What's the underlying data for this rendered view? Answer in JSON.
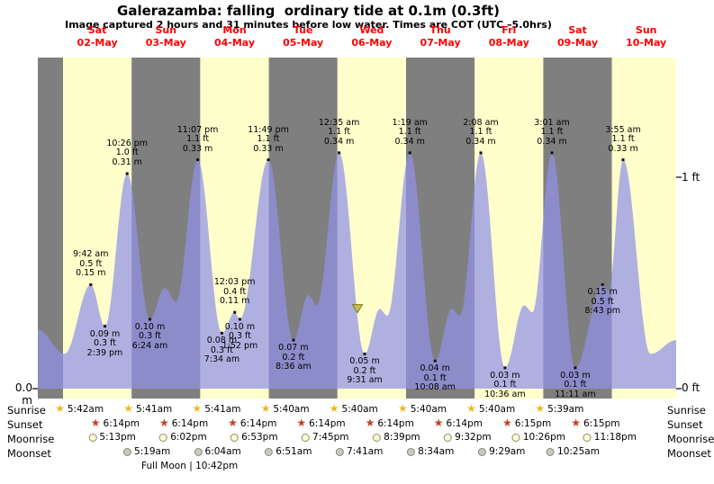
{
  "title": "Galerazamba: falling  ordinary tide at 0.1m (0.3ft)",
  "subtitle": "Image captured 2 hours and 31 minutes before low water. Times are COT (UTC –5.0hrs)",
  "axes": {
    "left_bottom": "0.0 m",
    "right_top": "1 ft",
    "right_bottom": "0 ft"
  },
  "colors": {
    "band_yellow": "#ffffcc",
    "band_gray": "#7f7f7f",
    "tide_fill": "#9191e8",
    "tide_opacity": 0.72,
    "day_label_red": "#ff0000",
    "marker_fill": "#c9c23f",
    "marker_stroke": "#7a762a",
    "sunrise_star": "#edb91e",
    "sunset_star": "#cf3b21",
    "moonrise_circle": "#ffffd6",
    "moonset_circle": "#c8c8c8"
  },
  "chart_data": {
    "type": "area",
    "title": "Galerazamba: falling  ordinary tide at 0.1m (0.3ft)",
    "ylabel_left": "0.0 m",
    "yticks_right": [
      "1 ft",
      "0 ft"
    ],
    "ylim_m": [
      0,
      0.48
    ],
    "x_span_days": 9.3,
    "days": [
      {
        "name": "Sat",
        "date": "02-May"
      },
      {
        "name": "Sun",
        "date": "03-May"
      },
      {
        "name": "Mon",
        "date": "04-May"
      },
      {
        "name": "Tue",
        "date": "05-May"
      },
      {
        "name": "Wed",
        "date": "06-May"
      },
      {
        "name": "Thu",
        "date": "07-May"
      },
      {
        "name": "Fri",
        "date": "08-May"
      },
      {
        "name": "Sat",
        "date": "09-May"
      },
      {
        "name": "Sun",
        "date": "10-May"
      }
    ],
    "tide_points": [
      {
        "kind": "high",
        "day": "02-May",
        "time": "9:42 am",
        "ft": "0.5 ft",
        "m": "0.15 m",
        "t": 9.7,
        "h": 0.15,
        "label_pos": "above"
      },
      {
        "kind": "low",
        "day": "02-May",
        "time": "2:39 pm",
        "ft": "0.3 ft",
        "m": "0.09 m",
        "t": 14.65,
        "h": 0.09,
        "label_pos": "below"
      },
      {
        "kind": "high",
        "day": "02-May",
        "time": "10:26 pm",
        "ft": "1.0 ft",
        "m": "0.31 m",
        "t": 22.43,
        "h": 0.31,
        "label_pos": "above"
      },
      {
        "kind": "low",
        "day": "03-May",
        "time": "6:24 am",
        "ft": "0.3 ft",
        "m": "0.10 m",
        "t": 30.4,
        "h": 0.1,
        "label_pos": "below"
      },
      {
        "kind": "high",
        "day": "03-May",
        "time": "11:07 pm",
        "ft": "1.1 ft",
        "m": "0.33 m",
        "t": 47.12,
        "h": 0.33,
        "label_pos": "above"
      },
      {
        "kind": "low",
        "day": "04-May",
        "time": "7:34 am",
        "ft": "0.3 ft",
        "m": "0.08 m",
        "t": 55.57,
        "h": 0.08,
        "label_pos": "below"
      },
      {
        "kind": "high",
        "day": "04-May",
        "time": "12:03 pm",
        "ft": "0.4 ft",
        "m": "0.11 m",
        "t": 60.05,
        "h": 0.11,
        "label_pos": "above"
      },
      {
        "kind": "low",
        "day": "04-May",
        "time": "1:52 pm",
        "ft": "0.3 ft",
        "m": "0.10 m",
        "t": 61.87,
        "h": 0.1,
        "label_pos": "below"
      },
      {
        "kind": "high",
        "day": "04-May",
        "time": "11:49 pm",
        "ft": "1.1 ft",
        "m": "0.33 m",
        "t": 71.82,
        "h": 0.33,
        "label_pos": "above"
      },
      {
        "kind": "low",
        "day": "05-May",
        "time": "8:36 am",
        "ft": "0.2 ft",
        "m": "0.07 m",
        "t": 80.6,
        "h": 0.07,
        "label_pos": "below"
      },
      {
        "kind": "high",
        "day": "06-May",
        "time": "12:35 am",
        "ft": "1.1 ft",
        "m": "0.34 m",
        "t": 96.58,
        "h": 0.34,
        "label_pos": "above"
      },
      {
        "kind": "low",
        "day": "06-May",
        "time": "9:31 am",
        "ft": "0.2 ft",
        "m": "0.05 m",
        "t": 105.52,
        "h": 0.05,
        "label_pos": "below"
      },
      {
        "kind": "high",
        "day": "07-May",
        "time": "1:19 am",
        "ft": "1.1 ft",
        "m": "0.34 m",
        "t": 121.32,
        "h": 0.34,
        "label_pos": "above"
      },
      {
        "kind": "low",
        "day": "07-May",
        "time": "10:08 am",
        "ft": "0.1 ft",
        "m": "0.04 m",
        "t": 130.13,
        "h": 0.04,
        "label_pos": "below"
      },
      {
        "kind": "high",
        "day": "08-May",
        "time": "2:08 am",
        "ft": "1.1 ft",
        "m": "0.34 m",
        "t": 146.13,
        "h": 0.34,
        "label_pos": "above"
      },
      {
        "kind": "low",
        "day": "08-May",
        "time": "10:36 am",
        "ft": "0.1 ft",
        "m": "0.03 m",
        "t": 154.6,
        "h": 0.03,
        "label_pos": "below"
      },
      {
        "kind": "high",
        "day": "09-May",
        "time": "3:01 am",
        "ft": "1.1 ft",
        "m": "0.34 m",
        "t": 171.02,
        "h": 0.34,
        "label_pos": "above"
      },
      {
        "kind": "low",
        "day": "09-May",
        "time": "11:11 am",
        "ft": "0.1 ft",
        "m": "0.03 m",
        "t": 179.18,
        "h": 0.03,
        "label_pos": "below"
      },
      {
        "kind": "point",
        "day": "09-May",
        "time": "8:43 pm",
        "ft": "0.5 ft",
        "m": "0.15 m",
        "t": 188.72,
        "h": 0.15,
        "label_pos": "below"
      },
      {
        "kind": "high",
        "day": "10-May",
        "time": "3:55 am",
        "ft": "1.1 ft",
        "m": "0.33 m",
        "t": 195.92,
        "h": 0.33,
        "label_pos": "above"
      }
    ],
    "curve_shape": [
      [
        -8.8,
        0.085
      ],
      [
        0.5,
        0.05
      ],
      [
        35.5,
        0.145
      ],
      [
        39.5,
        0.125
      ],
      [
        85.8,
        0.135
      ],
      [
        88.8,
        0.12
      ],
      [
        110.8,
        0.115
      ],
      [
        113.4,
        0.105
      ],
      [
        136.0,
        0.115
      ],
      [
        138.8,
        0.105
      ],
      [
        161.3,
        0.12
      ],
      [
        164.2,
        0.11
      ],
      [
        190.8,
        0.14
      ],
      [
        205.5,
        0.05
      ],
      [
        214.5,
        0.07
      ]
    ],
    "current_time_marker": {
      "t": 103.0,
      "h": 0.103
    }
  },
  "almanac": {
    "rows": [
      {
        "id": "sunrise",
        "label": "Sunrise",
        "icon": "star",
        "entries": [
          {
            "day": 0,
            "time": "5:42am"
          },
          {
            "day": 1,
            "time": "5:41am"
          },
          {
            "day": 2,
            "time": "5:41am"
          },
          {
            "day": 3,
            "time": "5:40am"
          },
          {
            "day": 4,
            "time": "5:40am"
          },
          {
            "day": 5,
            "time": "5:40am"
          },
          {
            "day": 6,
            "time": "5:40am"
          },
          {
            "day": 7,
            "time": "5:39am"
          }
        ]
      },
      {
        "id": "sunset",
        "label": "Sunset",
        "icon": "star",
        "entries": [
          {
            "day": 0,
            "time": "6:14pm"
          },
          {
            "day": 1,
            "time": "6:14pm"
          },
          {
            "day": 2,
            "time": "6:14pm"
          },
          {
            "day": 3,
            "time": "6:14pm"
          },
          {
            "day": 4,
            "time": "6:14pm"
          },
          {
            "day": 5,
            "time": "6:14pm"
          },
          {
            "day": 6,
            "time": "6:15pm"
          },
          {
            "day": 7,
            "time": "6:15pm"
          }
        ]
      },
      {
        "id": "moonrise",
        "label": "Moonrise",
        "icon": "circle",
        "entries": [
          {
            "day": 0,
            "time": "5:13pm"
          },
          {
            "day": 1,
            "time": "6:02pm"
          },
          {
            "day": 2,
            "time": "6:53pm"
          },
          {
            "day": 3,
            "time": "7:45pm"
          },
          {
            "day": 4,
            "time": "8:39pm"
          },
          {
            "day": 5,
            "time": "9:32pm"
          },
          {
            "day": 6,
            "time": "10:26pm"
          },
          {
            "day": 7,
            "time": "11:18pm"
          }
        ]
      },
      {
        "id": "moonset",
        "label": "Moonset",
        "icon": "circle",
        "entries": [
          {
            "day": 1,
            "time": "5:19am"
          },
          {
            "day": 2,
            "time": "6:04am"
          },
          {
            "day": 3,
            "time": "6:51am"
          },
          {
            "day": 4,
            "time": "7:41am"
          },
          {
            "day": 5,
            "time": "8:34am"
          },
          {
            "day": 6,
            "time": "9:29am"
          },
          {
            "day": 7,
            "time": "10:25am"
          }
        ]
      }
    ],
    "footnote": "Full Moon | 10:42pm"
  }
}
